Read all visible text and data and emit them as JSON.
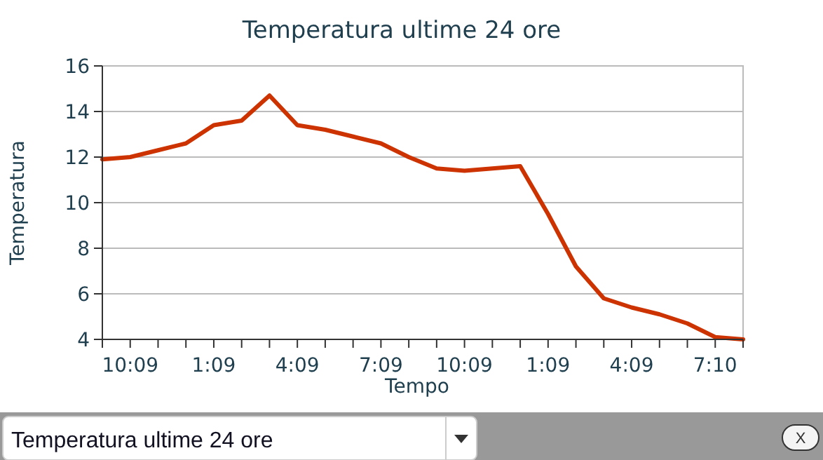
{
  "chart_data": {
    "type": "line",
    "title": "Temperatura ultime 24 ore",
    "xlabel": "Tempo",
    "ylabel": "Temperatura",
    "categories": [
      null,
      "10:09",
      null,
      null,
      "1:09",
      null,
      null,
      "4:09",
      null,
      null,
      "7:09",
      null,
      null,
      "10:09",
      null,
      null,
      "1:09",
      null,
      null,
      "4:09",
      null,
      null,
      "7:10",
      null
    ],
    "series": [
      {
        "color": "#cc3300",
        "values": [
          11.9,
          12.0,
          12.3,
          12.6,
          13.4,
          13.6,
          14.7,
          13.4,
          13.2,
          12.9,
          12.6,
          12.0,
          11.5,
          11.4,
          11.5,
          11.6,
          9.5,
          7.2,
          5.8,
          5.4,
          5.1,
          4.7,
          4.1,
          4.0
        ]
      }
    ],
    "ylim": [
      4,
      16
    ],
    "yticks": [
      4,
      6,
      8,
      10,
      12,
      14,
      16
    ],
    "grid": "y",
    "marker": "none",
    "line_style": "solid",
    "annotations": [
      "Temperatura ultime 24 ore",
      "X"
    ]
  }
}
